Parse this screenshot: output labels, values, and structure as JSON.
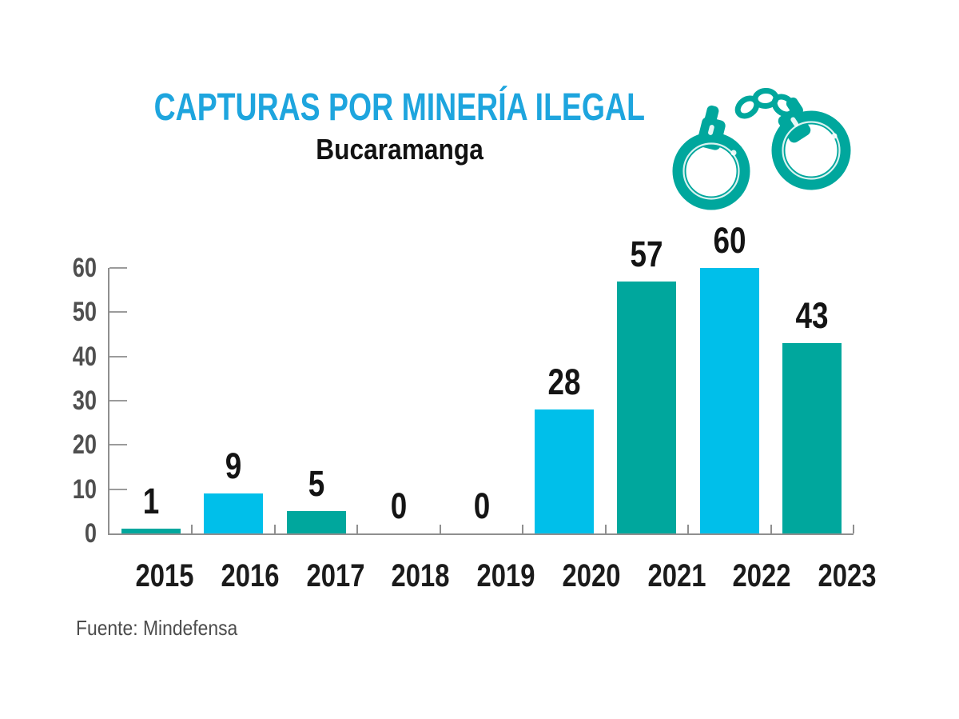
{
  "header": {
    "title": "CAPTURAS POR MINERÍA ILEGAL",
    "subtitle": "Bucaramanga",
    "title_color": "#1EA5DE"
  },
  "icon": {
    "name": "handcuffs-icon",
    "color": "#00A79D"
  },
  "chart_data": {
    "type": "bar",
    "title": "CAPTURAS POR MINERÍA ILEGAL",
    "subtitle": "Bucaramanga",
    "categories": [
      "2015",
      "2016",
      "2017",
      "2018",
      "2019",
      "2020",
      "2021",
      "2022",
      "2023"
    ],
    "values": [
      1,
      9,
      5,
      0,
      0,
      28,
      57,
      60,
      43
    ],
    "series": [
      {
        "name": "Capturas",
        "values": [
          1,
          9,
          5,
          0,
          0,
          28,
          57,
          60,
          43
        ]
      }
    ],
    "bar_colors": [
      "#00A79D",
      "#00BFEA",
      "#00A79D",
      "#00A79D",
      "#00A79D",
      "#00BFEA",
      "#00A79D",
      "#00BFEA",
      "#00A79D"
    ],
    "xlabel": "",
    "ylabel": "",
    "ylim": [
      0,
      60
    ],
    "yticks": [
      0,
      10,
      20,
      30,
      40,
      50,
      60
    ],
    "grid": false,
    "legend": "none",
    "value_labels_shown": true
  },
  "axes": {
    "line_color": "#8F8F8F",
    "tick_color": "#9B9B9B",
    "ytick_label_color": "#4F4F4F",
    "xtick_label_color": "#1B1B1B",
    "value_label_color": "#141414"
  },
  "footer": {
    "source": "Fuente: Mindefensa"
  }
}
